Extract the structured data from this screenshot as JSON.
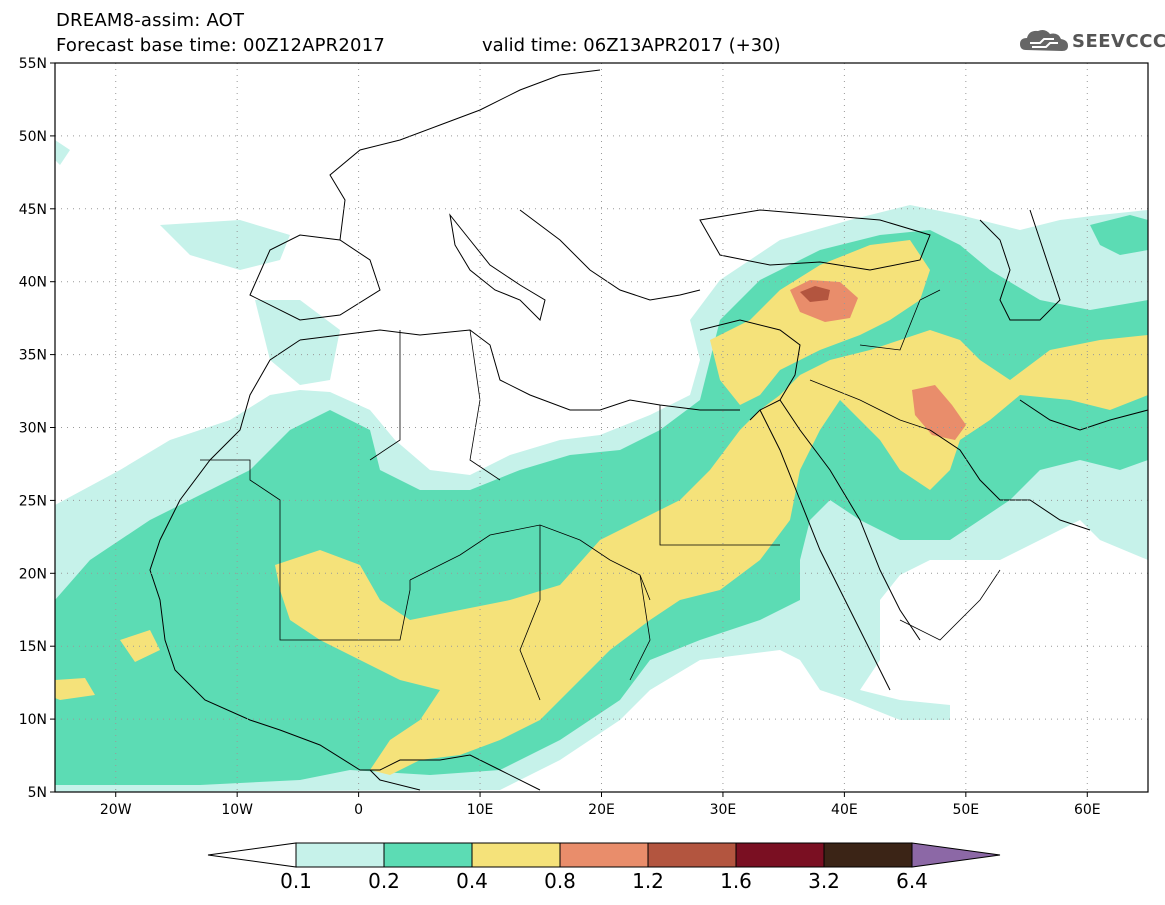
{
  "header": {
    "title_line1": "DREAM8-assim: AOT",
    "title_line2": "Forecast base time: 00Z12APR2017",
    "valid_time": "valid time: 06Z13APR2017 (+30)",
    "logo_text": "SEEVCCC"
  },
  "map": {
    "variable": "AOT",
    "lon_range": [
      -25,
      65
    ],
    "lat_range": [
      5,
      55
    ],
    "lat_labels": [
      "55N",
      "50N",
      "45N",
      "40N",
      "35N",
      "30N",
      "25N",
      "20N",
      "15N",
      "10N",
      "5N"
    ],
    "lon_labels": [
      "20W",
      "10W",
      "0",
      "10E",
      "20E",
      "30E",
      "40E",
      "50E",
      "60E"
    ],
    "grid": "dotted"
  },
  "colorbar": {
    "levels": [
      "0.1",
      "0.2",
      "0.4",
      "0.8",
      "1.2",
      "1.6",
      "3.2",
      "6.4"
    ],
    "colors": [
      "#ffffff",
      "#c6f2ea",
      "#5cdcb4",
      "#f5e27a",
      "#e98d6b",
      "#b3553f",
      "#7a0f22",
      "#3b2416",
      "#8c68a6"
    ]
  },
  "colors": {
    "level_0_1": "#c6f2ea",
    "level_0_2": "#5cdcb4",
    "level_0_4": "#f5e27a",
    "level_0_8": "#e98d6b",
    "level_1_2": "#b3553f",
    "background": "#ffffff"
  }
}
